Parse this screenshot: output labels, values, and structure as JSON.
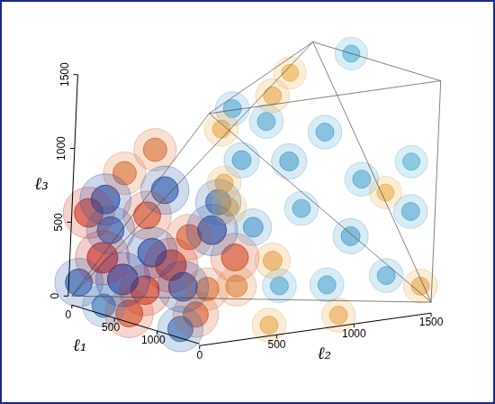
{
  "chart_data": {
    "type": "isosurface3d",
    "x_label": "ℓ₁",
    "y_label": "ℓ₂",
    "z_label": "ℓ₃",
    "xlim": [
      0,
      1500
    ],
    "xticks": [
      0,
      500,
      1000
    ],
    "ylim": [
      0,
      1500
    ],
    "yticks": [
      0,
      500,
      1000,
      1500
    ],
    "zlim": [
      0,
      1500
    ],
    "zticks": [
      0,
      500,
      1000,
      1500
    ],
    "points": {
      "x": [
        75,
        150,
        300,
        600,
        525,
        750,
        1125,
        675,
        150,
        225,
        450,
        900,
        75,
        450,
        375,
        525,
        225,
        750,
        75,
        450,
        150,
        1275,
        375,
        300,
        450,
        450,
        750,
        900,
        1200,
        1350,
        1500,
        600,
        1200,
        1200,
        300,
        450,
        1350,
        300,
        450,
        225,
        375,
        975,
        1500,
        1500,
        1500,
        450,
        1050,
        150,
        1050
      ],
      "y": [
        45,
        105,
        300,
        300,
        180,
        630,
        180,
        0,
        225,
        375,
        495,
        375,
        150,
        75,
        300,
        600,
        450,
        300,
        0,
        675,
        150,
        0,
        0,
        1050,
        1125,
        1350,
        1050,
        1350,
        1125,
        1425,
        1200,
        825,
        675,
        1500,
        900,
        1500,
        900,
        825,
        675,
        1125,
        750,
        750,
        450,
        900,
        1425,
        750,
        480,
        1275,
        1425
      ],
      "z": [
        570,
        270,
        555,
        270,
        105,
        300,
        45,
        0,
        825,
        975,
        405,
        150,
        645,
        180,
        315,
        450,
        690,
        150,
        105,
        615,
        450,
        0,
        0,
        1080,
        825,
        990,
        570,
        750,
        450,
        600,
        225,
        450,
        180,
        900,
        840,
        1500,
        180,
        1200,
        1110,
        1230,
        720,
        300,
        0,
        0,
        120,
        570,
        180,
        1350,
        675
      ],
      "values": [
        0.9,
        1.0,
        0.8,
        1.0,
        0.9,
        0.8,
        0.7,
        0.8,
        0.6,
        0.6,
        0.7,
        0.6,
        -0.9,
        -1.0,
        -0.9,
        -0.9,
        -0.8,
        -0.9,
        -0.8,
        -0.7,
        -0.8,
        -0.7,
        -0.6,
        -0.3,
        -0.35,
        -0.3,
        -0.3,
        -0.3,
        -0.35,
        -0.3,
        -0.3,
        -0.4,
        -0.3,
        -0.25,
        -0.35,
        -0.25,
        -0.3,
        -0.3,
        0.3,
        0.3,
        0.3,
        0.35,
        0.3,
        0.3,
        0.3,
        0.3,
        0.5,
        0.25,
        0.25
      ]
    }
  }
}
